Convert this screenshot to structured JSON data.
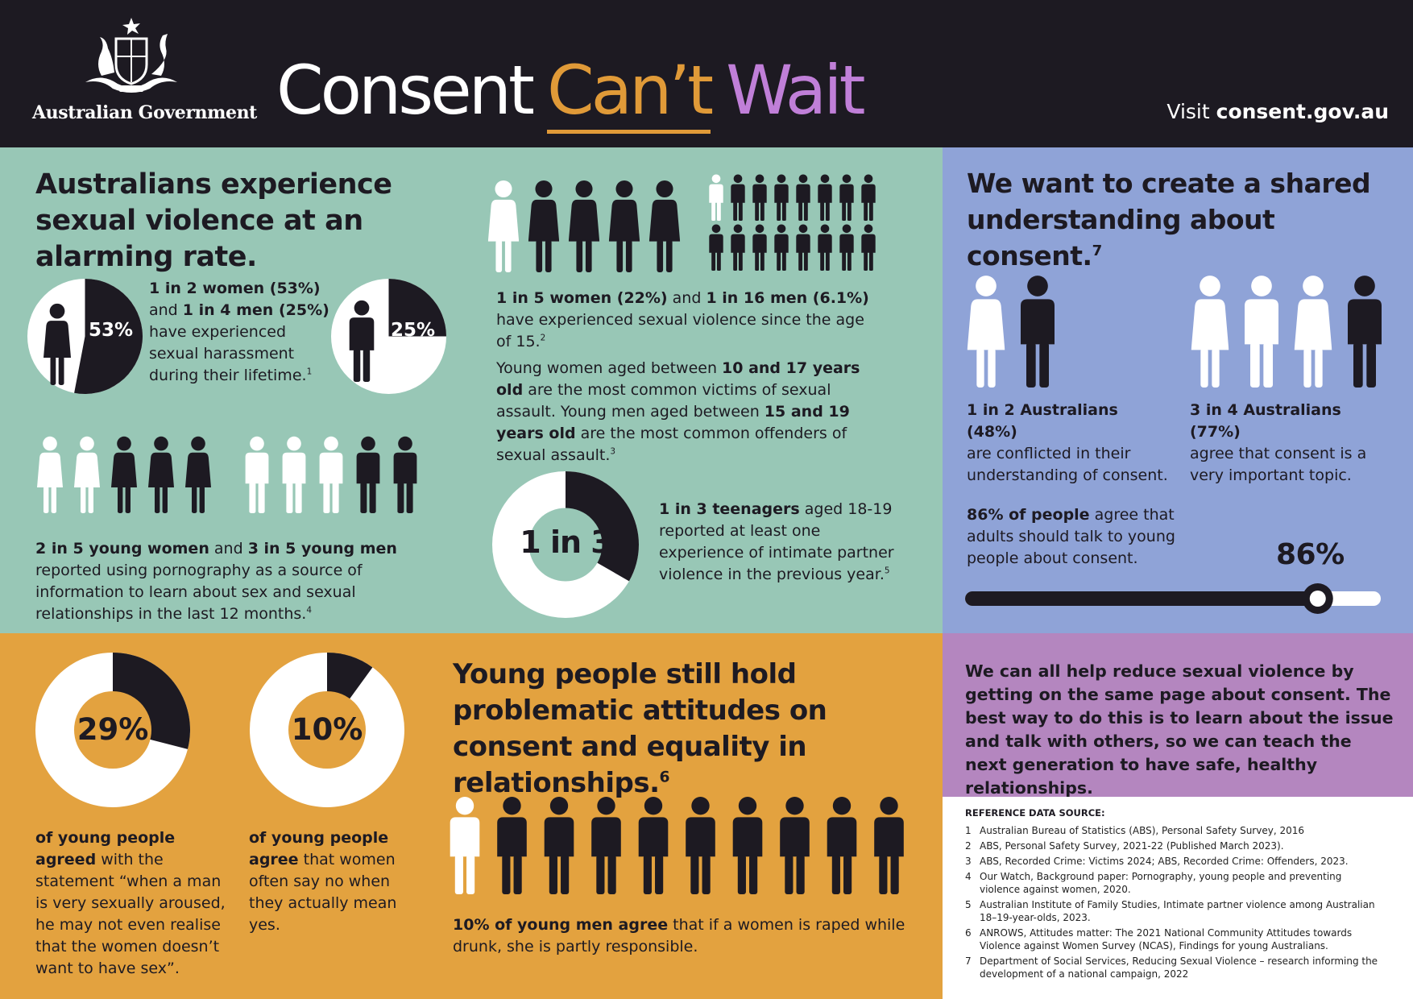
{
  "header": {
    "government": "Australian Government",
    "title_part1": "Consent",
    "title_part2": "Can’t",
    "title_part3": "Wait",
    "visit_prefix": "Visit",
    "visit_url": "consent.gov.au"
  },
  "teal": {
    "heading": "Australians experience sexual violence at an alarming rate.",
    "pie_women_label": "53%",
    "pie_men_label": "25%",
    "harassment": {
      "b1": "1 in 2 women (53%)",
      "t1": " and ",
      "b2": "1 in 4 men (25%)",
      "t2": " have experienced sexual harassment during their lifetime.",
      "sup": "1"
    },
    "pornography": {
      "b1": "2 in 5 young women",
      "t1": " and ",
      "b2": "3 in 5 young men",
      "t2": " reported using pornography as a source of information to learn about sex and sexual relationships in the last 12 months.",
      "sup": "4"
    },
    "sexual_violence": {
      "b1": "1 in 5 women (22%)",
      "t1": " and ",
      "b2": "1 in 16 men (6.1%)",
      "t2": " have experienced sexual violence since the age of 15.",
      "sup": "2"
    },
    "young": {
      "t1": "Young women aged between ",
      "b1": "10 and 17 years old",
      "t2": " are the most common victims of sexual assault. Young men aged between ",
      "b2": "15 and 19 years old",
      "t3": " are the most common offenders of sexual assault.",
      "sup": "3"
    },
    "donut_label": "1 in 3",
    "teen": {
      "b1": "1 in 3 teenagers",
      "t1": " aged 18-19 reported at least one experience of intimate partner violence in the previous year.",
      "sup": "5"
    }
  },
  "blue": {
    "heading": "We want to create a shared understanding about consent.",
    "heading_sup": "7",
    "stat1": {
      "b": "1 in 2 Australians (48%)",
      "t": "are conflicted in their understanding of consent."
    },
    "stat2": {
      "b": "3 in 4 Australians (77%)",
      "t": "agree that consent is a very important topic."
    },
    "adults": {
      "b": "86% of people",
      "t": " agree that adults should talk to young people about consent."
    },
    "slider_label": "86%",
    "slider_value": 0.86
  },
  "orange": {
    "donut1_label": "29%",
    "donut2_label": "10%",
    "text1": {
      "b": "of young people agreed",
      "t": " with the statement “when a man is very sexually aroused, he may not even realise that the women doesn’t want to have sex”."
    },
    "text2": {
      "b": "of young people agree",
      "t": " that women often say no when they actually mean yes."
    },
    "heading": "Young people still hold problematic attitudes on consent and equality in relationships.",
    "heading_sup": "6",
    "men": {
      "b": "10% of young men agree",
      "t": " that if a women is raped while drunk, she is partly responsible."
    }
  },
  "purple": {
    "text": "We can all help reduce sexual violence by getting on the same page about consent. The best way to do this is to learn about the issue and talk with others, so we can teach the next generation to have safe, healthy relationships."
  },
  "references": {
    "title": "REFERENCE DATA SOURCE:",
    "items": [
      {
        "n": "1",
        "text": "Australian Bureau of Statistics (ABS), Personal Safety Survey, 2016"
      },
      {
        "n": "2",
        "text": "ABS, Personal Safety Survey, 2021-22 (Published March 2023)."
      },
      {
        "n": "3",
        "text": "ABS, Recorded Crime: Victims 2024; ABS, Recorded Crime: Offenders, 2023."
      },
      {
        "n": "4",
        "text": "Our Watch, Background paper: Pornography, young people and preventing violence against women, 2020."
      },
      {
        "n": "5",
        "text": "Australian Institute of Family Studies, Intimate partner violence among Australian 18–19-year-olds, 2023."
      },
      {
        "n": "6",
        "text": "ANROWS, Attitudes matter: The 2021 National Community Attitudes towards Violence against Women Survey (NCAS), Findings for young Australians."
      },
      {
        "n": "7",
        "text": "Department of Social Services, Reducing Sexual Violence – research informing the development of a national campaign, 2022"
      }
    ]
  },
  "colors": {
    "dark": "#1d1a22",
    "teal": "#98c7b6",
    "blue": "#8fa3d7",
    "orange": "#e3a23f",
    "purple": "#b486bf",
    "title_orange": "#e09a38",
    "title_purple": "#c07fd8"
  },
  "icons": {
    "crest": "coat-of-arms-icon",
    "female": "female-figure-icon",
    "male": "male-figure-icon"
  },
  "figures": {
    "harassment_pie_women": 0.53,
    "harassment_pie_men": 0.25,
    "teen_donut": 0.333,
    "donut_29": 0.29,
    "donut_10": 0.1,
    "women_row": [
      "white",
      "black",
      "black",
      "black",
      "black"
    ],
    "men_grid": [
      "white",
      "black",
      "black",
      "black",
      "black",
      "black",
      "black",
      "black",
      "black",
      "black",
      "black",
      "black",
      "black",
      "black",
      "black",
      "black"
    ],
    "porn_women": [
      "white",
      "white",
      "black",
      "black",
      "black"
    ],
    "porn_men": [
      "white",
      "white",
      "white",
      "black",
      "black"
    ],
    "blue_pair": [
      [
        "female",
        "white"
      ],
      [
        "male",
        "black"
      ]
    ],
    "blue_quad": [
      [
        "female",
        "white"
      ],
      [
        "male",
        "white"
      ],
      [
        "female",
        "white"
      ],
      [
        "male",
        "black"
      ]
    ],
    "orange_men": [
      "white",
      "black",
      "black",
      "black",
      "black",
      "black",
      "black",
      "black",
      "black",
      "black"
    ]
  }
}
